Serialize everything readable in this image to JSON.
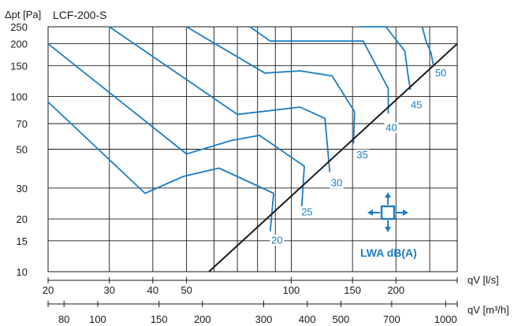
{
  "chart_data": {
    "type": "line",
    "title": "LCF-200-S",
    "ylabel": "Δpt [Pa]",
    "xlabel": "qV [l/s]",
    "xlabel2": "qV [m³/h]",
    "x_scale": "log",
    "y_scale": "log",
    "xlim": [
      20,
      300
    ],
    "ylim": [
      10,
      250
    ],
    "yticks": [
      10,
      15,
      20,
      30,
      50,
      70,
      100,
      150,
      200,
      250
    ],
    "xticks": [
      20,
      30,
      40,
      50,
      100,
      150,
      200
    ],
    "xticks2": [
      80,
      100,
      150,
      200,
      300,
      400,
      500,
      700,
      1000
    ],
    "legend_label": "LWA dB(A)",
    "colors": {
      "curves": "#1a7dc4",
      "line": "#1a1a1a",
      "grid": "#1a1a1a",
      "labels": "#1a7dc4"
    },
    "min_diameter_line": [
      [
        58,
        10
      ],
      [
        300,
        200
      ]
    ],
    "series": [
      {
        "name": "20",
        "points": [
          [
            20,
            93
          ],
          [
            38,
            28
          ],
          [
            49,
            35
          ],
          [
            62,
            39
          ],
          [
            89,
            28
          ],
          [
            87,
            17
          ]
        ]
      },
      {
        "name": "25",
        "points": [
          [
            20,
            200
          ],
          [
            50,
            47
          ],
          [
            67,
            56
          ],
          [
            81,
            60
          ],
          [
            109,
            40
          ],
          [
            107,
            22
          ]
        ]
      },
      {
        "name": "30",
        "points": [
          [
            30,
            250
          ],
          [
            70,
            79
          ],
          [
            106,
            87
          ],
          [
            125,
            75
          ],
          [
            129,
            37
          ]
        ]
      },
      {
        "name": "35",
        "points": [
          [
            50,
            250
          ],
          [
            84,
            136
          ],
          [
            106,
            140
          ],
          [
            131,
            131
          ],
          [
            152,
            82
          ],
          [
            151,
            54
          ]
        ]
      },
      {
        "name": "40",
        "points": [
          [
            76,
            250
          ],
          [
            87,
            207
          ],
          [
            137,
            207
          ],
          [
            161,
            207
          ],
          [
            190,
            111
          ],
          [
            190,
            80
          ]
        ]
      },
      {
        "name": "45",
        "points": [
          [
            159,
            250
          ],
          [
            187,
            250
          ],
          [
            212,
            182
          ],
          [
            216,
            138
          ],
          [
            220,
            109
          ]
        ]
      },
      {
        "name": "50",
        "points": [
          [
            238,
            250
          ],
          [
            244,
            207
          ],
          [
            252,
            178
          ],
          [
            256,
            152
          ]
        ]
      }
    ],
    "curve_labels": [
      {
        "text": "20",
        "x": 91,
        "y": 14.8
      },
      {
        "text": "25",
        "x": 111,
        "y": 21.5
      },
      {
        "text": "30",
        "x": 135,
        "y": 31.5
      },
      {
        "text": "35",
        "x": 160,
        "y": 45.5
      },
      {
        "text": "40",
        "x": 194,
        "y": 65
      },
      {
        "text": "45",
        "x": 229,
        "y": 88
      },
      {
        "text": "50",
        "x": 269,
        "y": 134
      }
    ]
  }
}
